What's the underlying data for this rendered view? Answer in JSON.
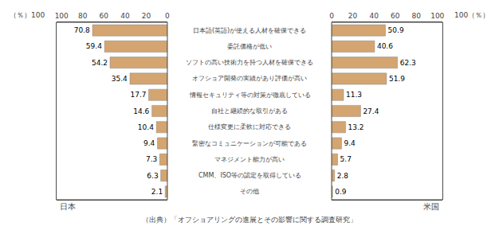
{
  "chart_data": [
    {
      "type": "bar",
      "orientation": "horizontal",
      "title": "日本",
      "categories": [
        "日本語(英語)が使える人材を確保できる",
        "委託価格が低い",
        "ソフトの高い技術力を持つ人材を確保できる",
        "オフショア開発の実績があり評価が高い",
        "情報セキュリティ等の対策が徹底している",
        "自社と継続的な取引がある",
        "仕様変更に柔軟に対応できる",
        "緊密なコミュニケーションが可能である",
        "マネジメント能力が高い",
        "CMM、ISO等の認定を取得している",
        "その他"
      ],
      "values": [
        70.8,
        59.4,
        54.2,
        35.4,
        17.7,
        14.6,
        10.4,
        9.4,
        7.3,
        6.3,
        2.1
      ],
      "color": "#d4a570",
      "xlim": [
        105,
        0
      ],
      "xticks": [
        0,
        20,
        40,
        60,
        80,
        100
      ],
      "data_labels": true,
      "grid": false,
      "annotations": [
        "（％）100",
        "（出典）「オフショアリングの進展とその影響に関する調査研究」"
      ]
    },
    {
      "type": "bar",
      "orientation": "horizontal",
      "title": "米国",
      "categories": [
        "日本語(英語)が使える人材を確保できる",
        "委託価格が低い",
        "ソフトの高い技術力を持つ人材を確保できる",
        "オフショア開発の実績があり評価が高い",
        "情報セキュリティ等の対策が徹底している",
        "自社と継続的な取引がある",
        "仕様変更に柔軟に対応できる",
        "緊密なコミュニケーションが可能である",
        "マネジメント能力が高い",
        "CMM、ISO等の認定を取得している",
        "その他"
      ],
      "values": [
        50.9,
        40.6,
        62.3,
        51.9,
        11.3,
        27.4,
        13.2,
        9.4,
        5.7,
        2.8,
        0.9
      ],
      "color": "#d4a570",
      "xlim": [
        0,
        105
      ],
      "xticks": [
        0,
        20,
        40,
        60,
        80,
        100
      ],
      "data_labels": true,
      "grid": false,
      "annotations": [
        "100（％）"
      ]
    }
  ]
}
